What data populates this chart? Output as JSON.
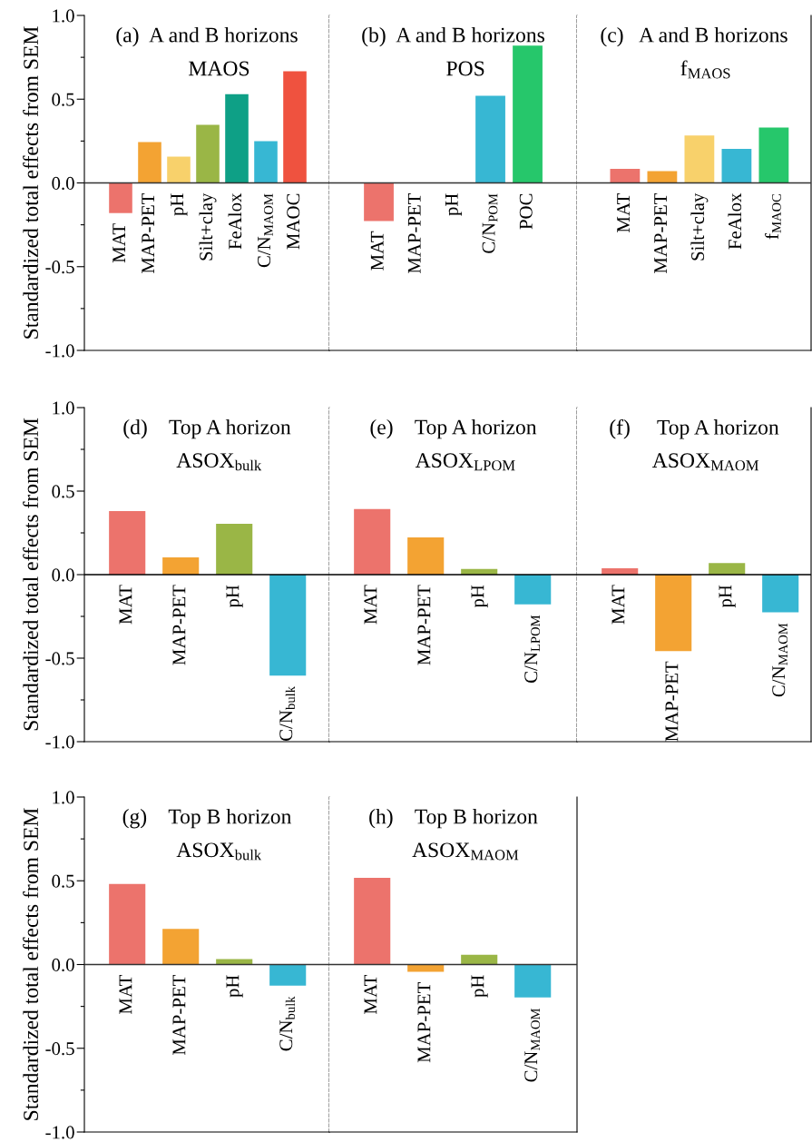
{
  "chart_data": [
    {
      "type": "bar",
      "title": "(a)  A and B horizons",
      "subtitle": "MAOS",
      "ylabel": "Standardized total effects from SEM",
      "categories": [
        "MAT",
        "MAP-PET",
        "pH",
        "Silt+clay",
        "FeAlox",
        "C/N$_{MAOM}$",
        "MAOC"
      ],
      "values": [
        -0.18,
        0.244,
        0.157,
        0.347,
        0.53,
        0.25,
        0.667
      ],
      "colors": [
        "#ec736c",
        "#f3a333",
        "#f8d16b",
        "#9ab646",
        "#0ea086",
        "#37b7d3",
        "#ef523f"
      ],
      "ylim": [
        -1.0,
        1.0
      ],
      "yticks": [
        {
          "value": -1.0,
          "label": "-1.0"
        },
        {
          "value": -0.75,
          "label": null
        },
        {
          "value": -0.5,
          "label": "-0.5"
        },
        {
          "value": -0.25,
          "label": null
        },
        {
          "value": 0.0,
          "label": "0.0"
        },
        {
          "value": 0.25,
          "label": null
        },
        {
          "value": 0.5,
          "label": "0.5"
        },
        {
          "value": 0.75,
          "label": null
        },
        {
          "value": 1.0,
          "label": "1.0"
        }
      ],
      "tick_labels": "y",
      "ref_lines": [
        {
          "axis": "y",
          "value": 0,
          "color": "#333333"
        }
      ]
    },
    {
      "type": "bar",
      "title": "(b)  A and B horizons",
      "subtitle": "POS",
      "categories": [
        "MAT",
        "MAP-PET",
        "pH",
        "C/N$_{POM}$",
        "POC"
      ],
      "values": [
        -0.227,
        null,
        null,
        0.52,
        0.82
      ],
      "colors": [
        "#ec736c",
        "#f3a333",
        "#f8d16b",
        "#37b7d3",
        "#26c76b"
      ],
      "ylim": [
        -1.0,
        1.0
      ],
      "tick_labels": false,
      "ref_lines": [
        {
          "axis": "y",
          "value": 0,
          "color": "#333333"
        }
      ]
    },
    {
      "type": "bar",
      "title": "(c)   A and B horizons",
      "subtitle": "f$_{MAOS}$",
      "categories": [
        "MAT",
        "MAP-PET",
        "Silt+clay",
        "FeAlox",
        "f$_{MAOC}$"
      ],
      "values": [
        0.084,
        0.07,
        0.283,
        0.203,
        0.33
      ],
      "colors": [
        "#ec736c",
        "#f3a333",
        "#f8d16b",
        "#37b7d3",
        "#26c76b"
      ],
      "ylim": [
        -1.0,
        1.0
      ],
      "tick_labels": false,
      "ref_lines": [
        {
          "axis": "y",
          "value": 0,
          "color": "#333333"
        }
      ]
    },
    {
      "type": "bar",
      "title": "(d)    Top A horizon",
      "subtitle": "ASOX$_{bulk}$",
      "ylabel": "Standardized total effects from SEM",
      "categories": [
        "MAT",
        "MAP-PET",
        "pH",
        "C/N$_{bulk}$"
      ],
      "values": [
        0.38,
        0.103,
        0.304,
        -0.605
      ],
      "colors": [
        "#ec736c",
        "#f3a333",
        "#9ab646",
        "#37b7d3"
      ],
      "ylim": [
        -1.0,
        1.0
      ],
      "yticks": [
        {
          "value": -1.0,
          "label": "-1.0"
        },
        {
          "value": -0.75,
          "label": null
        },
        {
          "value": -0.5,
          "label": "-0.5"
        },
        {
          "value": -0.25,
          "label": null
        },
        {
          "value": 0.0,
          "label": "0.0"
        },
        {
          "value": 0.25,
          "label": null
        },
        {
          "value": 0.5,
          "label": "0.5"
        },
        {
          "value": 0.75,
          "label": null
        },
        {
          "value": 1.0,
          "label": "1.0"
        }
      ],
      "tick_labels": "y",
      "ref_lines": [
        {
          "axis": "y",
          "value": 0,
          "color": "#000000"
        }
      ]
    },
    {
      "type": "bar",
      "title": "(e)    Top A horizon",
      "subtitle": "ASOX$_{LPOM}$",
      "categories": [
        "MAT",
        "MAP-PET",
        "pH",
        "C/N$_{LPOM}$"
      ],
      "values": [
        0.393,
        0.223,
        0.034,
        -0.178
      ],
      "colors": [
        "#ec736c",
        "#f3a333",
        "#9ab646",
        "#37b7d3"
      ],
      "ylim": [
        -1.0,
        1.0
      ],
      "tick_labels": false,
      "ref_lines": [
        {
          "axis": "y",
          "value": 0,
          "color": "#000000"
        }
      ]
    },
    {
      "type": "bar",
      "title": "(f)     Top A horizon",
      "subtitle": "ASOX$_{MAOM}$",
      "categories": [
        "MAT",
        "MAP-PET",
        "pH",
        "C/N$_{MAOM}$"
      ],
      "values": [
        0.038,
        -0.458,
        0.069,
        -0.226
      ],
      "colors": [
        "#ec736c",
        "#f3a333",
        "#9ab646",
        "#37b7d3"
      ],
      "ylim": [
        -1.0,
        1.0
      ],
      "tick_labels": false,
      "ref_lines": [
        {
          "axis": "y",
          "value": 0,
          "color": "#000000"
        }
      ]
    },
    {
      "type": "bar",
      "title": "(g)    Top B horizon",
      "subtitle": "ASOX$_{bulk}$",
      "ylabel": "Standardized total effects from SEM",
      "categories": [
        "MAT",
        "MAP-PET",
        "pH",
        "C/N$_{bulk}$"
      ],
      "values": [
        0.481,
        0.213,
        0.033,
        -0.126
      ],
      "colors": [
        "#ec736c",
        "#f3a333",
        "#9ab646",
        "#37b7d3"
      ],
      "ylim": [
        -1.0,
        1.0
      ],
      "yticks": [
        {
          "value": -1.0,
          "label": "-1.0"
        },
        {
          "value": -0.75,
          "label": null
        },
        {
          "value": -0.5,
          "label": "-0.5"
        },
        {
          "value": -0.25,
          "label": null
        },
        {
          "value": 0.0,
          "label": "0.0"
        },
        {
          "value": 0.25,
          "label": null
        },
        {
          "value": 0.5,
          "label": "0.5"
        },
        {
          "value": 0.75,
          "label": null
        },
        {
          "value": 1.0,
          "label": "1.0"
        }
      ],
      "tick_labels": "y",
      "ref_lines": [
        {
          "axis": "y",
          "value": 0,
          "color": "#333333"
        }
      ]
    },
    {
      "type": "bar",
      "title": "(h)    Top B horizon",
      "subtitle": "ASOX$_{MAOM}$",
      "categories": [
        "MAT",
        "MAP-PET",
        "pH",
        "C/N$_{MAOM}$"
      ],
      "values": [
        0.517,
        -0.044,
        0.058,
        -0.197
      ],
      "colors": [
        "#ec736c",
        "#f3a333",
        "#9ab646",
        "#37b7d3"
      ],
      "ylim": [
        -1.0,
        1.0
      ],
      "tick_labels": false,
      "ref_lines": [
        {
          "axis": "y",
          "value": 0,
          "color": "#333333"
        }
      ]
    }
  ]
}
